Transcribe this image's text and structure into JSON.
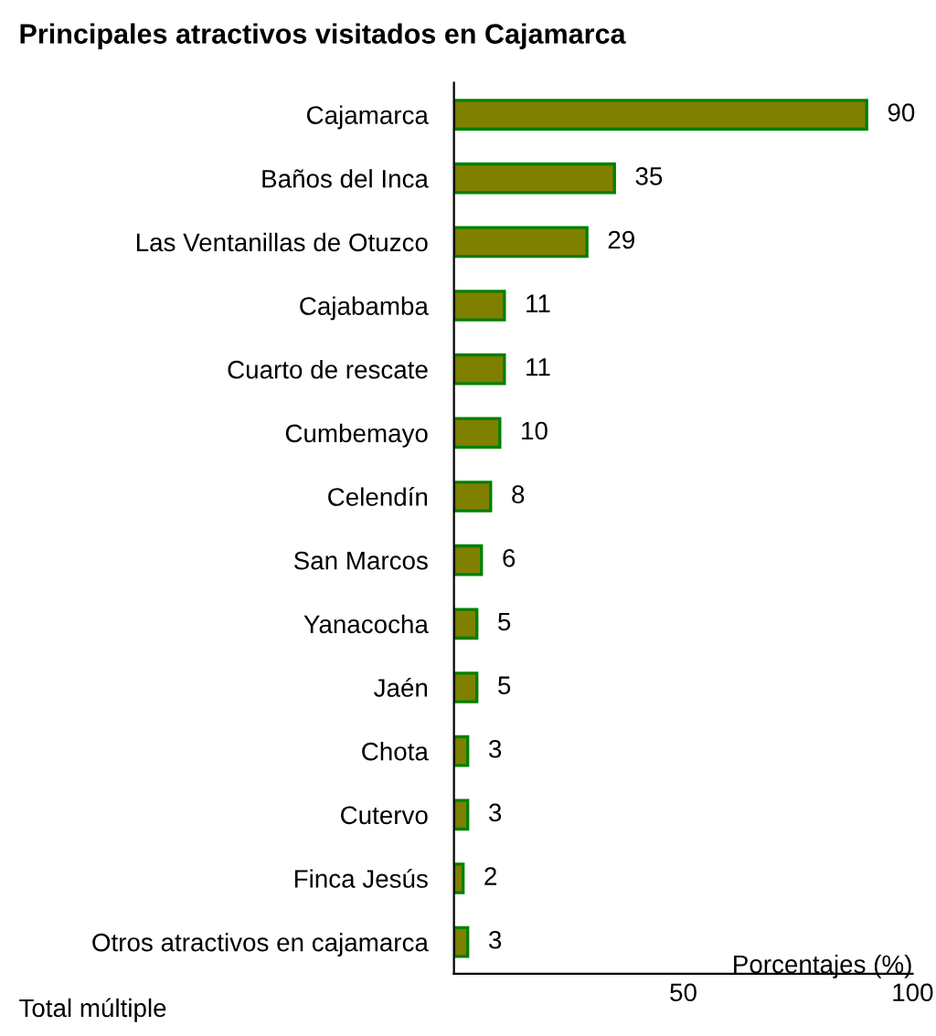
{
  "chart_data": {
    "type": "bar",
    "orientation": "horizontal",
    "title": "Principales atractivos visitados en Cajamarca",
    "categories": [
      "Cajamarca",
      "Baños del Inca",
      "Las Ventanillas de Otuzco",
      "Cajabamba",
      "Cuarto de rescate",
      "Cumbemayo",
      "Celendín",
      "San Marcos",
      "Yanacocha",
      "Jaén",
      "Chota",
      "Cutervo",
      "Finca Jesús",
      "Otros atractivos en cajamarca"
    ],
    "values": [
      90,
      35,
      29,
      11,
      11,
      10,
      8,
      6,
      5,
      5,
      3,
      3,
      2,
      3
    ],
    "color": "#808000",
    "xlim": [
      0,
      100
    ],
    "xticks": [
      50,
      100
    ],
    "xlabel": "Porcentajes (%)",
    "data_labels": true,
    "grid": false,
    "legend": false,
    "annotations": [
      "Total múltiple"
    ]
  }
}
